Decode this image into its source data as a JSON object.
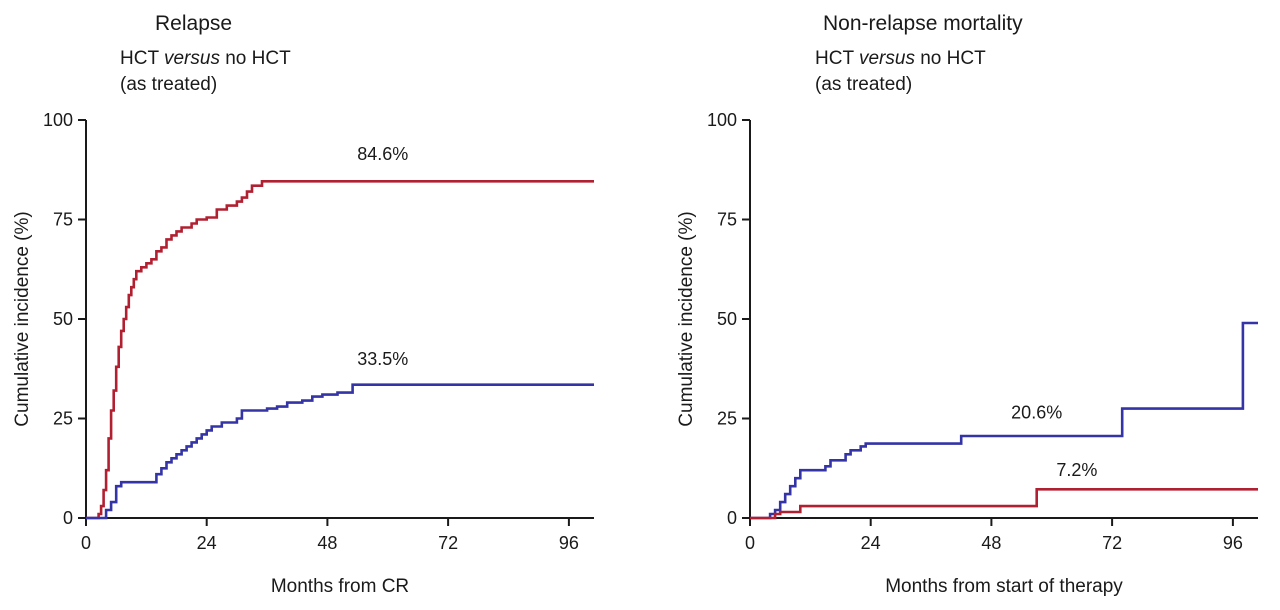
{
  "figure": {
    "background": "#ffffff"
  },
  "chart_data": [
    {
      "type": "line",
      "step": true,
      "title": "Relapse",
      "subtitle": {
        "pre": "HCT ",
        "italic": "versus",
        "post": " no HCT",
        "line2": "(as treated)"
      },
      "xlabel": "Months from CR",
      "ylabel": "Cumulative incidence (%)",
      "xlim": [
        0,
        101
      ],
      "ylim": [
        0,
        100
      ],
      "xticks": [
        0,
        24,
        48,
        72,
        96
      ],
      "yticks": [
        0,
        25,
        50,
        75,
        100
      ],
      "series": [
        {
          "name": "series-red",
          "color": "#b02031",
          "points": [
            [
              0,
              0
            ],
            [
              2,
              0
            ],
            [
              2.5,
              1
            ],
            [
              3,
              3
            ],
            [
              3.5,
              7
            ],
            [
              4,
              12
            ],
            [
              4.5,
              20
            ],
            [
              5,
              27
            ],
            [
              5.5,
              32
            ],
            [
              6,
              38
            ],
            [
              6.5,
              43
            ],
            [
              7,
              47
            ],
            [
              7.5,
              50
            ],
            [
              8,
              53
            ],
            [
              8.5,
              56
            ],
            [
              9,
              58
            ],
            [
              9.5,
              60
            ],
            [
              10,
              62
            ],
            [
              11,
              63
            ],
            [
              12,
              64
            ],
            [
              13,
              65
            ],
            [
              14,
              67
            ],
            [
              15,
              68
            ],
            [
              16,
              70
            ],
            [
              17,
              71
            ],
            [
              18,
              72
            ],
            [
              19,
              73
            ],
            [
              21,
              74
            ],
            [
              22,
              75
            ],
            [
              24,
              75.5
            ],
            [
              26,
              77.5
            ],
            [
              28,
              78.5
            ],
            [
              30,
              79.5
            ],
            [
              31,
              80.5
            ],
            [
              32,
              82
            ],
            [
              33,
              83.5
            ],
            [
              35,
              84.6
            ],
            [
              101,
              84.6
            ]
          ]
        },
        {
          "name": "series-blue",
          "color": "#3434a6",
          "points": [
            [
              0,
              0
            ],
            [
              3,
              0
            ],
            [
              4,
              2
            ],
            [
              5,
              4
            ],
            [
              6,
              8
            ],
            [
              7,
              9
            ],
            [
              13,
              9
            ],
            [
              14,
              11
            ],
            [
              15,
              12.5
            ],
            [
              16,
              14
            ],
            [
              17,
              15
            ],
            [
              18,
              16
            ],
            [
              19,
              17
            ],
            [
              20,
              18
            ],
            [
              21,
              19
            ],
            [
              22,
              20
            ],
            [
              23,
              21
            ],
            [
              24,
              22
            ],
            [
              25,
              23
            ],
            [
              27,
              24
            ],
            [
              30,
              25
            ],
            [
              31,
              27
            ],
            [
              36,
              27.5
            ],
            [
              38,
              28
            ],
            [
              40,
              29
            ],
            [
              43,
              29.5
            ],
            [
              45,
              30.5
            ],
            [
              47,
              31
            ],
            [
              50,
              31.5
            ],
            [
              53,
              33.5
            ],
            [
              101,
              33.5
            ]
          ]
        }
      ],
      "annotations": [
        {
          "text": "84.6%",
          "x": 59,
          "y": 90
        },
        {
          "text": "33.5%",
          "x": 59,
          "y": 38.5
        }
      ]
    },
    {
      "type": "line",
      "step": true,
      "title": "Non-relapse mortality",
      "subtitle": {
        "pre": "HCT ",
        "italic": "versus",
        "post": " no HCT",
        "line2": "(as treated)"
      },
      "xlabel": "Months from start of therapy",
      "ylabel": "Cumulative incidence (%)",
      "xlim": [
        0,
        101
      ],
      "ylim": [
        0,
        100
      ],
      "xticks": [
        0,
        24,
        48,
        72,
        96
      ],
      "yticks": [
        0,
        25,
        50,
        75,
        100
      ],
      "series": [
        {
          "name": "series-blue",
          "color": "#3434a6",
          "points": [
            [
              0,
              0
            ],
            [
              3,
              0
            ],
            [
              4,
              1
            ],
            [
              5,
              2
            ],
            [
              6,
              4
            ],
            [
              7,
              6
            ],
            [
              8,
              8
            ],
            [
              9,
              10
            ],
            [
              10,
              12
            ],
            [
              14,
              12
            ],
            [
              15,
              13
            ],
            [
              16,
              14.5
            ],
            [
              19,
              16
            ],
            [
              20,
              17
            ],
            [
              22,
              18
            ],
            [
              23,
              18.7
            ],
            [
              40,
              18.7
            ],
            [
              42,
              20.6
            ],
            [
              71,
              20.6
            ],
            [
              74,
              27.5
            ],
            [
              97,
              27.5
            ],
            [
              98,
              49
            ],
            [
              101,
              49
            ]
          ]
        },
        {
          "name": "series-red",
          "color": "#b02031",
          "points": [
            [
              0,
              0
            ],
            [
              4,
              0
            ],
            [
              5,
              1
            ],
            [
              6,
              1.5
            ],
            [
              10,
              3
            ],
            [
              55,
              3
            ],
            [
              57,
              7.2
            ],
            [
              101,
              7.2
            ]
          ]
        }
      ],
      "annotations": [
        {
          "text": "20.6%",
          "x": 57,
          "y": 25
        },
        {
          "text": "7.2%",
          "x": 65,
          "y": 10.5
        }
      ]
    }
  ]
}
